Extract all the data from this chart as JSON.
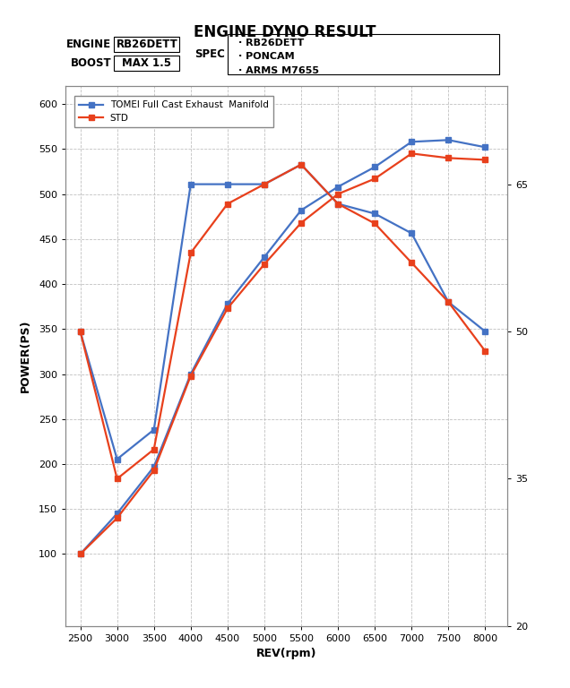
{
  "title": "ENGINE DYNO RESULT",
  "engine_label": "ENGINE",
  "engine_value": "RB26DETT",
  "boost_label": "BOOST",
  "boost_value": "MAX 1.5",
  "spec_label": "SPEC",
  "spec_items": [
    "· RB26DETT",
    "· PONCAM",
    "· ARMS M7655"
  ],
  "rev": [
    2500,
    3000,
    3500,
    4000,
    4500,
    5000,
    5500,
    6000,
    6500,
    7000,
    7500,
    8000
  ],
  "power_tomei": [
    100,
    145,
    197,
    300,
    378,
    430,
    482,
    508,
    530,
    558,
    560,
    552
  ],
  "power_std": [
    100,
    140,
    193,
    298,
    373,
    422,
    468,
    500,
    517,
    545,
    540,
    538
  ],
  "torque_tomei": [
    50,
    37,
    40,
    65,
    65,
    65,
    67,
    63,
    62,
    60,
    53,
    50
  ],
  "torque_std": [
    50,
    35,
    38,
    58,
    63,
    65,
    67,
    63,
    61,
    57,
    53,
    48
  ],
  "tomei_color": "#4472C4",
  "std_color": "#E8401C",
  "bg_color": "#FFFFFF",
  "plot_bg": "#FFFFFF",
  "grid_color": "#C0C0C0",
  "legend_tomei": "TOMEI Full Cast Exhaust  Manifold",
  "legend_std": "STD",
  "xlabel": "REV(rpm)",
  "ylabel": "POWER(PS)",
  "ylim_main": [
    20,
    620
  ],
  "ylim_right": [
    20,
    75
  ],
  "xlim": [
    2300,
    8300
  ],
  "yticks_main": [
    100,
    150,
    200,
    250,
    300,
    350,
    400,
    450,
    500,
    550,
    600
  ],
  "yticks_right": [
    20,
    35,
    50,
    65
  ],
  "xticks": [
    2500,
    3000,
    3500,
    4000,
    4500,
    5000,
    5500,
    6000,
    6500,
    7000,
    7500,
    8000
  ],
  "marker_size": 4,
  "line_width": 1.6
}
